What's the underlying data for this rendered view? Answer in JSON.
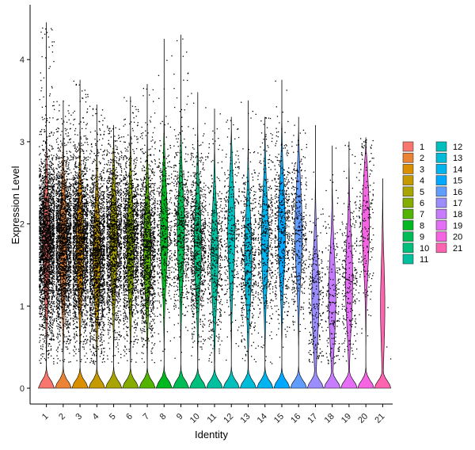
{
  "chart_data": {
    "type": "violin",
    "xlabel": "Identity",
    "ylabel": "Expression Level",
    "ylim": [
      -0.2,
      4.6
    ],
    "yticks": [
      0,
      1,
      2,
      3,
      4
    ],
    "grid": false,
    "legend_position": "right",
    "legend_columns": 2,
    "groups": [
      {
        "id": "1",
        "color": "#F8766D",
        "median": 1.75,
        "max": 4.45,
        "points": 2400
      },
      {
        "id": "2",
        "color": "#EB8335",
        "median": 1.75,
        "max": 3.5,
        "points": 2200
      },
      {
        "id": "3",
        "color": "#DA8F00",
        "median": 1.75,
        "max": 3.75,
        "points": 2000
      },
      {
        "id": "4",
        "color": "#C49A00",
        "median": 1.6,
        "max": 3.45,
        "points": 1800
      },
      {
        "id": "5",
        "color": "#A9A400",
        "median": 1.8,
        "max": 3.2,
        "points": 1500
      },
      {
        "id": "6",
        "color": "#86AC00",
        "median": 1.75,
        "max": 3.55,
        "points": 1400
      },
      {
        "id": "7",
        "color": "#53B400",
        "median": 1.7,
        "max": 3.7,
        "points": 1300
      },
      {
        "id": "8",
        "color": "#00B81F",
        "median": 1.9,
        "max": 4.25,
        "points": 450
      },
      {
        "id": "9",
        "color": "#00BC56",
        "median": 1.9,
        "max": 4.3,
        "points": 600
      },
      {
        "id": "10",
        "color": "#00BF7D",
        "median": 1.75,
        "max": 3.6,
        "points": 800
      },
      {
        "id": "11",
        "color": "#00C09F",
        "median": 1.6,
        "max": 3.4,
        "points": 450
      },
      {
        "id": "12",
        "color": "#00BFBD",
        "median": 1.9,
        "max": 3.3,
        "points": 300
      },
      {
        "id": "13",
        "color": "#00BCD8",
        "median": 1.6,
        "max": 3.5,
        "points": 500
      },
      {
        "id": "14",
        "color": "#00B4EF",
        "median": 1.8,
        "max": 3.3,
        "points": 450
      },
      {
        "id": "15",
        "color": "#00A9FF",
        "median": 1.9,
        "max": 3.75,
        "points": 500
      },
      {
        "id": "16",
        "color": "#619CFF",
        "median": 1.9,
        "max": 3.3,
        "points": 400
      },
      {
        "id": "17",
        "color": "#9C8DFF",
        "median": 1.1,
        "max": 3.2,
        "points": 250
      },
      {
        "id": "18",
        "color": "#C77CFF",
        "median": 1.1,
        "max": 2.95,
        "points": 200
      },
      {
        "id": "19",
        "color": "#E56EF6",
        "median": 1.3,
        "max": 3.0,
        "points": 250
      },
      {
        "id": "20",
        "color": "#F564E3",
        "median": 2.0,
        "max": 3.05,
        "points": 200
      },
      {
        "id": "21",
        "color": "#FF64B0",
        "median": 1.0,
        "max": 2.55,
        "points": 3
      }
    ]
  }
}
